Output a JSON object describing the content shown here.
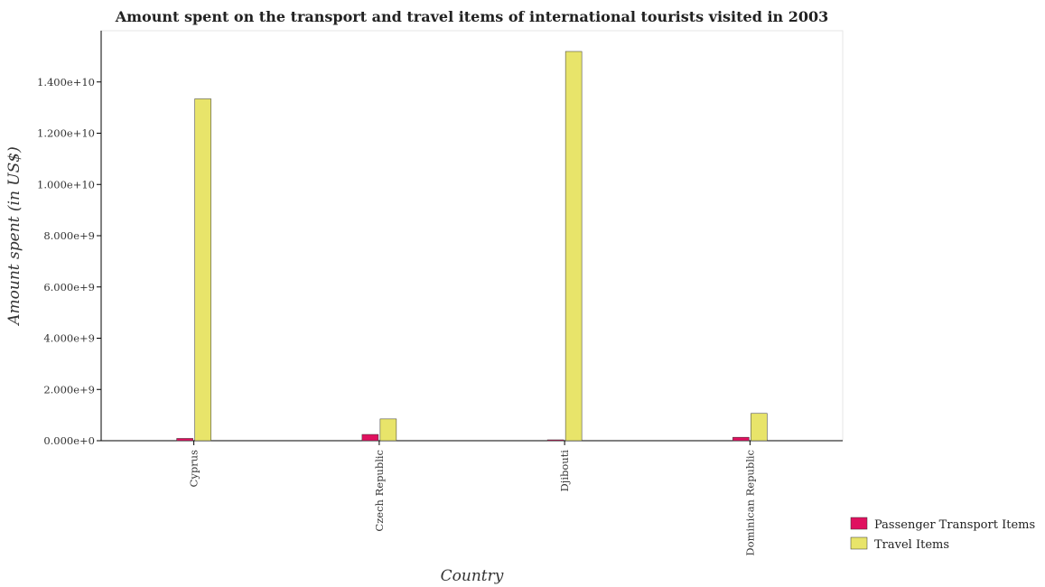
{
  "chart_data": {
    "type": "bar",
    "title": "Amount spent on the transport and travel items of international tourists visited in 2003",
    "xlabel": "Country",
    "ylabel": "Amount spent (in US$)",
    "categories": [
      "Cyprus",
      "Czech Republic",
      "Djibouti",
      "Dominican Republic"
    ],
    "series": [
      {
        "name": "Passenger Transport Items",
        "color": "#e0115f",
        "values": [
          90000000,
          245000000,
          10000000,
          135000000
        ]
      },
      {
        "name": "Travel Items",
        "color": "#e8e46a",
        "values": [
          13340000000,
          850000000,
          15190000000,
          1065000000
        ]
      }
    ],
    "ylim": [
      0,
      16000000000
    ],
    "yticks": [
      0,
      2000000000,
      4000000000,
      6000000000,
      8000000000,
      10000000000,
      12000000000,
      14000000000
    ],
    "ytick_labels": [
      "0.000e+0",
      "2.000e+9",
      "4.000e+9",
      "6.000e+9",
      "8.000e+9",
      "1.000e+10",
      "1.200e+10",
      "1.400e+10"
    ],
    "legend_position": "bottom-right",
    "grid": false
  }
}
